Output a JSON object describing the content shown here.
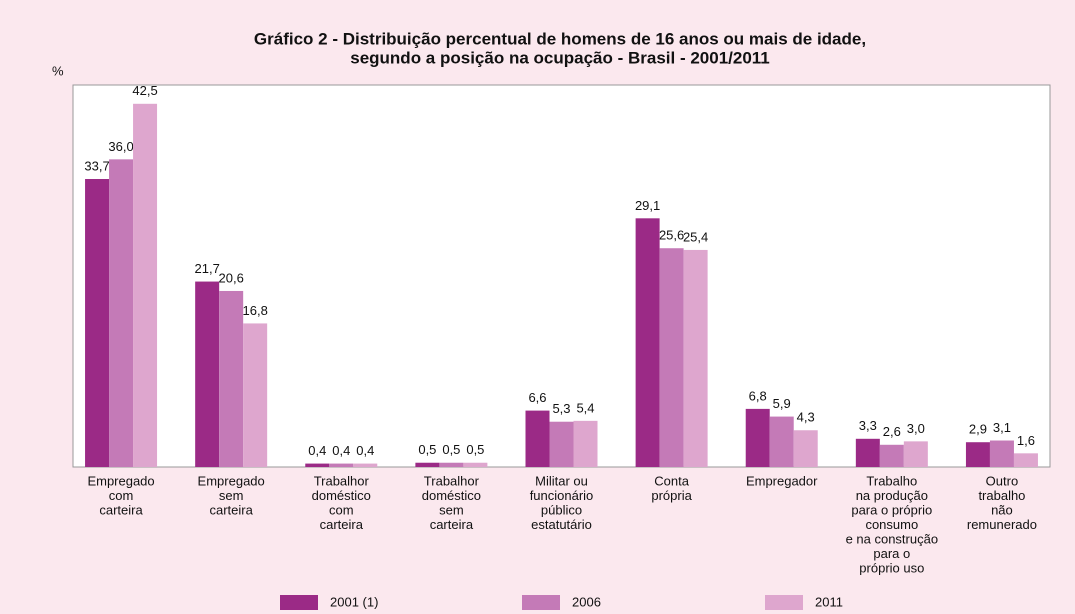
{
  "chart_data": {
    "type": "bar",
    "title": [
      "Gráfico 2  - Distribuição percentual de homens de 16 anos ou mais de idade,",
      "segundo a posição na ocupação - Brasil - 2001/2011"
    ],
    "y_label": "%",
    "categories": [
      [
        "Empregado",
        "com",
        "carteira"
      ],
      [
        "Empregado",
        "sem",
        "carteira"
      ],
      [
        "Trabalhor",
        "doméstico",
        "com",
        "carteira"
      ],
      [
        "Trabalhor",
        "doméstico",
        "sem",
        "carteira"
      ],
      [
        "Militar ou",
        "funcionário",
        "público",
        "estatutário"
      ],
      [
        "Conta",
        "própria"
      ],
      [
        "Empregador"
      ],
      [
        "Trabalho",
        "na produção",
        "para o próprio",
        "consumo",
        "e na construção",
        "para o",
        "próprio uso"
      ],
      [
        "Outro",
        "trabalho",
        "não",
        "remunerado"
      ]
    ],
    "series": [
      {
        "name": "2001 (1)",
        "color": "#9b2a86",
        "values": [
          33.7,
          21.7,
          0.4,
          0.5,
          6.6,
          29.1,
          6.8,
          3.3,
          2.9
        ],
        "value_labels": [
          "33,7",
          "21,7",
          "0,4",
          "0,5",
          "6,6",
          "29,1",
          "6,8",
          "3,3",
          "2,9"
        ]
      },
      {
        "name": "2006",
        "color": "#c47ab7",
        "values": [
          36.0,
          20.6,
          0.4,
          0.5,
          5.3,
          25.6,
          5.9,
          2.6,
          3.1
        ],
        "value_labels": [
          "36,0",
          "20,6",
          "0,4",
          "0,5",
          "5,3",
          "25,6",
          "5,9",
          "2,6",
          "3,1"
        ]
      },
      {
        "name": "2011",
        "color": "#dea6ce",
        "values": [
          42.5,
          16.8,
          0.4,
          0.5,
          5.4,
          25.4,
          4.3,
          3.0,
          1.6
        ],
        "value_labels": [
          "42,5",
          "16,8",
          "0,4",
          "0,5",
          "5,4",
          "25,4",
          "4,3",
          "3,0",
          "1,6"
        ]
      }
    ],
    "ylim": [
      0,
      44.7
    ]
  }
}
